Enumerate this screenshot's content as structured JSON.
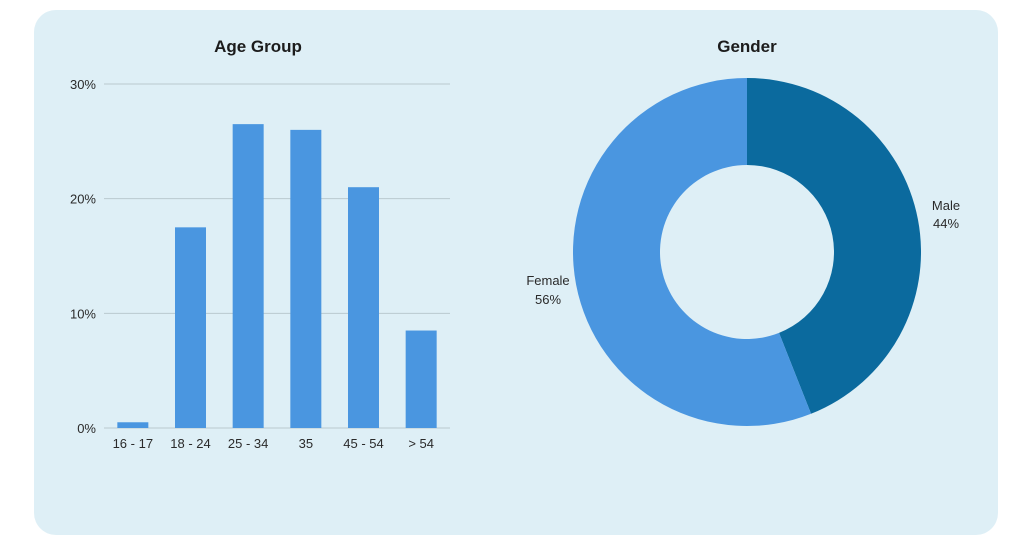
{
  "chart_data": [
    {
      "type": "bar",
      "title": "Age Group",
      "categories": [
        "16 - 17",
        "18 - 24",
        "25 - 34",
        "35",
        "45 - 54",
        "> 54"
      ],
      "values": [
        0.5,
        17.5,
        26.5,
        26.0,
        21.0,
        8.5
      ],
      "ylim": [
        0,
        30
      ],
      "yticks": [
        0,
        10,
        20,
        30
      ],
      "ytick_labels": [
        "0%",
        "10%",
        "20%",
        "30%"
      ],
      "grid": true,
      "color": "#4a96e0"
    },
    {
      "type": "pie",
      "title": "Gender",
      "donut": true,
      "slices": [
        {
          "label": "Male",
          "value": 44,
          "value_label": "44%",
          "color": "#0b6a9e"
        },
        {
          "label": "Female",
          "value": 56,
          "value_label": "56%",
          "color": "#4a96e0"
        }
      ]
    }
  ]
}
